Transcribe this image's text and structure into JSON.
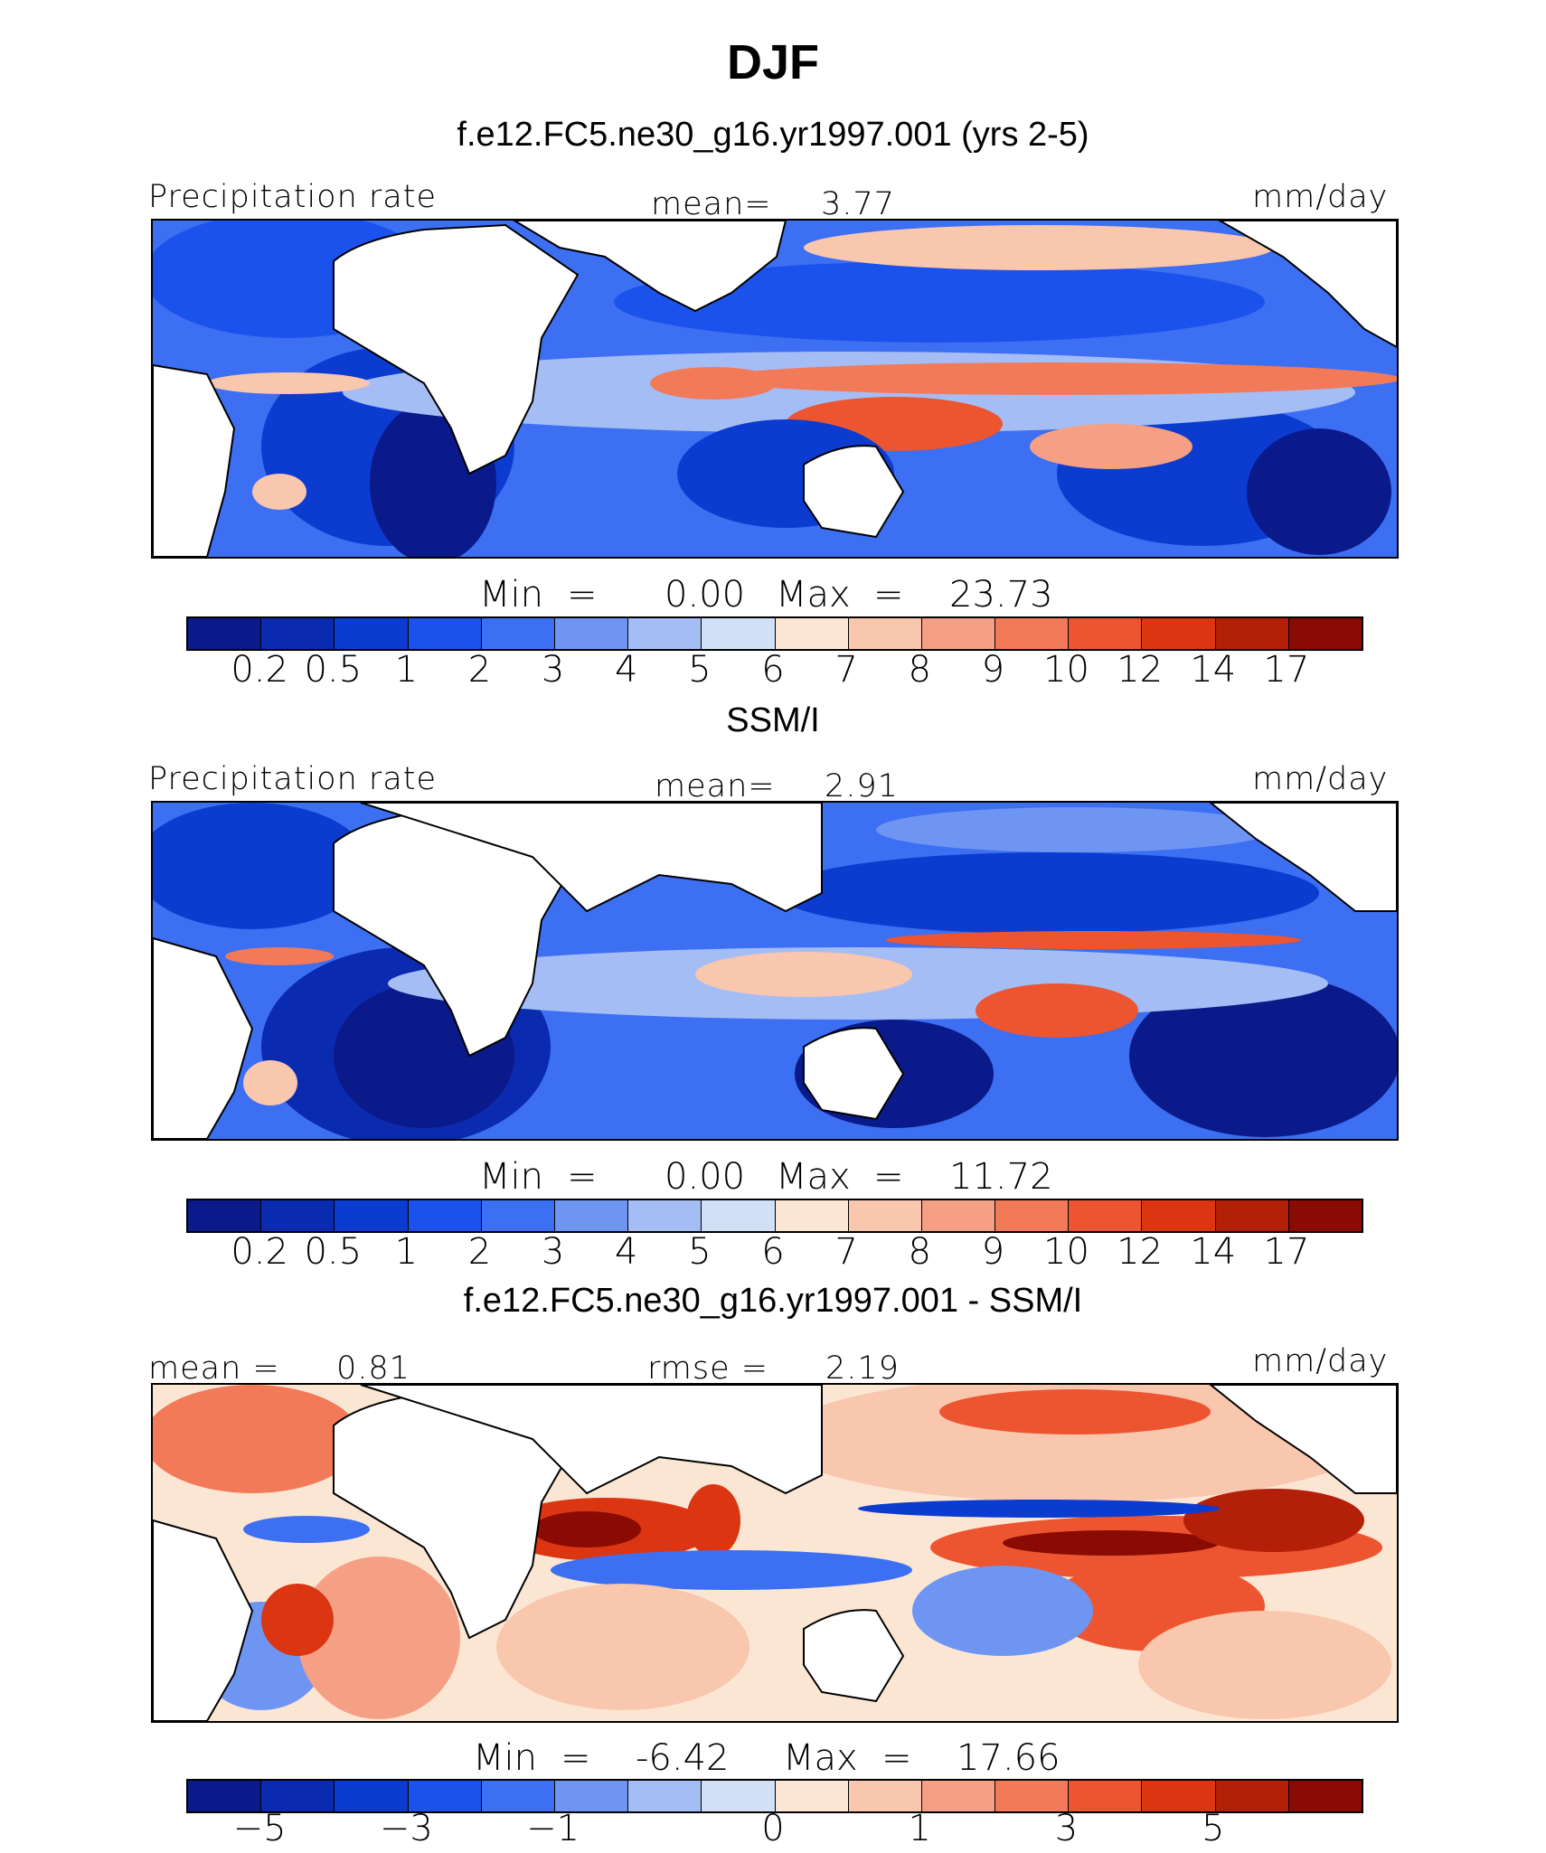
{
  "title": "DJF",
  "panels": [
    {
      "subtitle": "f.e12.FC5.ne30_g16.yr1997.001 (yrs 2-5)",
      "left_label": "Precipitation rate",
      "center_label": "mean=",
      "center_value": "3.77",
      "right_label": "mm/day",
      "min_label": "Min",
      "min_value": "0.00",
      "max_label": "Max",
      "max_value": "23.73",
      "colorbar": {
        "colors": [
          "#0a1a8a",
          "#0a2ab0",
          "#0c3bd0",
          "#1c52ec",
          "#3d6ff2",
          "#6f95f3",
          "#a5bdf5",
          "#d1e0f7",
          "#fbe6d4",
          "#f9c6ae",
          "#f5a084",
          "#f27a58",
          "#ec5530",
          "#db3512",
          "#b31f08",
          "#8a0b03"
        ],
        "ticks": [
          "0.2",
          "0.5",
          "1",
          "2",
          "3",
          "4",
          "5",
          "6",
          "7",
          "8",
          "9",
          "10",
          "12",
          "14",
          "17"
        ]
      }
    },
    {
      "subtitle": "SSM/I",
      "left_label": "Precipitation rate",
      "center_label": "mean=",
      "center_value": "2.91",
      "right_label": "mm/day",
      "min_label": "Min",
      "min_value": "0.00",
      "max_label": "Max",
      "max_value": "11.72",
      "colorbar": {
        "colors": [
          "#0a1a8a",
          "#0a2ab0",
          "#0c3bd0",
          "#1c52ec",
          "#3d6ff2",
          "#6f95f3",
          "#a5bdf5",
          "#d1e0f7",
          "#fbe6d4",
          "#f9c6ae",
          "#f5a084",
          "#f27a58",
          "#ec5530",
          "#db3512",
          "#b31f08",
          "#8a0b03"
        ],
        "ticks": [
          "0.2",
          "0.5",
          "1",
          "2",
          "3",
          "4",
          "5",
          "6",
          "7",
          "8",
          "9",
          "10",
          "12",
          "14",
          "17"
        ]
      }
    },
    {
      "subtitle": "f.e12.FC5.ne30_g16.yr1997.001 - SSM/I",
      "left_label": "mean =",
      "left_value": "0.81",
      "center_label": "rmse =",
      "center_value": "2.19",
      "right_label": "mm/day",
      "min_label": "Min",
      "min_value": "-6.42",
      "max_label": "Max",
      "max_value": "17.66",
      "colorbar": {
        "colors": [
          "#0a1a8a",
          "#0a2ab0",
          "#0c3bd0",
          "#1c52ec",
          "#3d6ff2",
          "#6f95f3",
          "#a5bdf5",
          "#d1e0f7",
          "#fbe6d4",
          "#f9c6ae",
          "#f5a084",
          "#f27a58",
          "#ec5530",
          "#db3512",
          "#b31f08",
          "#8a0b03"
        ],
        "ticks": [
          "−5",
          "−3",
          "−1",
          "0",
          "1",
          "3",
          "5"
        ]
      }
    }
  ]
}
